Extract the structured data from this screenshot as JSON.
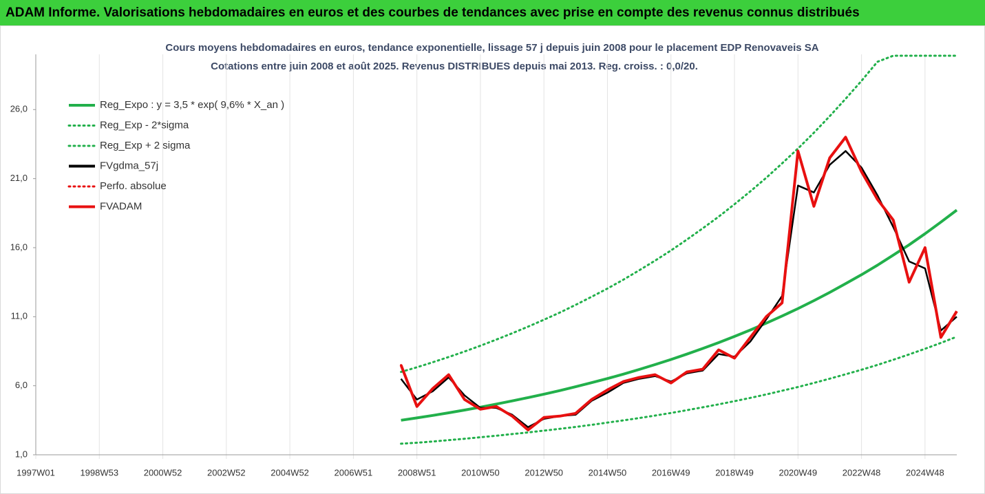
{
  "header": "ADAM Informe. Valorisations hebdomadaires en euros et des courbes de tendances avec prise en compte des revenus connus distribués",
  "chart_data": {
    "type": "line",
    "title": "Cours moyens hebdomadaires en euros, tendance exponentielle, lissage 57 j depuis juin 2008 pour le placement EDP Renovaveis SA",
    "subtitle": "Cotations entre juin 2008 et août 2025. Revenus DISTRIBUES depuis mai 2013. Reg. croiss. : 0,0/20.",
    "categories": [
      "1997W01",
      null,
      null,
      null,
      "1998W53",
      null,
      null,
      null,
      "2000W52",
      null,
      null,
      null,
      "2002W52",
      null,
      null,
      null,
      "2004W52",
      null,
      null,
      null,
      "2006W51",
      null,
      null,
      null,
      "2008W51",
      null,
      null,
      null,
      "2010W50",
      null,
      null,
      null,
      "2012W50",
      null,
      null,
      null,
      "2014W50",
      null,
      null,
      null,
      "2016W49",
      null,
      null,
      null,
      "2018W49",
      null,
      null,
      null,
      "2020W49",
      null,
      null,
      null,
      "2022W48",
      null,
      null,
      null,
      "2024W48",
      null,
      null
    ],
    "ylim": [
      1,
      30
    ],
    "yticks": [
      {
        "value": 1,
        "label": "1,0"
      },
      {
        "value": 6,
        "label": "6,0"
      },
      {
        "value": 11,
        "label": "11,0"
      },
      {
        "value": 16,
        "label": "16,0"
      },
      {
        "value": 21,
        "label": "21,0"
      },
      {
        "value": 26,
        "label": "26,0"
      }
    ],
    "grid": true,
    "legend": "top-left",
    "series": [
      {
        "name": "Reg_Expo : y = 3,5 * exp( 9,6% *  X_an )",
        "color": "#22b04b",
        "style": "solid",
        "values": [
          null,
          null,
          null,
          null,
          null,
          null,
          null,
          null,
          null,
          null,
          null,
          null,
          null,
          null,
          null,
          null,
          null,
          null,
          null,
          null,
          null,
          null,
          null,
          3.5,
          3.67,
          3.85,
          4.04,
          4.24,
          4.45,
          4.67,
          4.9,
          5.14,
          5.39,
          5.65,
          5.93,
          6.22,
          6.52,
          6.84,
          7.18,
          7.53,
          7.9,
          8.29,
          8.7,
          9.12,
          9.57,
          10.04,
          10.53,
          11.05,
          11.59,
          12.16,
          12.76,
          13.39,
          14.04,
          14.73,
          15.46,
          16.21,
          17.01,
          17.85,
          18.72
        ]
      },
      {
        "name": "Reg_Exp - 2*sigma",
        "color": "#22b04b",
        "style": "dotted",
        "values": [
          null,
          null,
          null,
          null,
          null,
          null,
          null,
          null,
          null,
          null,
          null,
          null,
          null,
          null,
          null,
          null,
          null,
          null,
          null,
          null,
          null,
          null,
          null,
          1.8,
          1.87,
          1.96,
          2.06,
          2.16,
          2.27,
          2.38,
          2.5,
          2.62,
          2.75,
          2.88,
          3.02,
          3.17,
          3.33,
          3.49,
          3.66,
          3.84,
          4.03,
          4.23,
          4.44,
          4.65,
          4.88,
          5.12,
          5.37,
          5.64,
          5.91,
          6.2,
          6.51,
          6.83,
          7.16,
          7.51,
          7.88,
          8.27,
          8.68,
          9.1,
          9.55
        ]
      },
      {
        "name": "Reg_Exp + 2 sigma",
        "color": "#22b04b",
        "style": "dotted",
        "values": [
          null,
          null,
          null,
          null,
          null,
          null,
          null,
          null,
          null,
          null,
          null,
          null,
          null,
          null,
          null,
          null,
          null,
          null,
          null,
          null,
          null,
          null,
          null,
          7.0,
          7.34,
          7.7,
          8.08,
          8.48,
          8.9,
          9.34,
          9.8,
          10.28,
          10.78,
          11.3,
          11.86,
          12.44,
          13.04,
          13.68,
          14.36,
          15.06,
          15.8,
          16.58,
          17.4,
          18.24,
          19.14,
          20.08,
          21.06,
          22.1,
          23.18,
          24.32,
          25.52,
          26.78,
          28.08,
          29.46,
          29.9,
          29.9,
          29.9,
          29.9,
          29.9
        ]
      },
      {
        "name": "FVgdma_57j",
        "color": "#000000",
        "style": "solid",
        "values": [
          null,
          null,
          null,
          null,
          null,
          null,
          null,
          null,
          null,
          null,
          null,
          null,
          null,
          null,
          null,
          null,
          null,
          null,
          null,
          null,
          null,
          null,
          null,
          6.5,
          5.0,
          5.6,
          6.6,
          5.3,
          4.4,
          4.4,
          3.9,
          3.0,
          3.6,
          3.8,
          3.9,
          4.9,
          5.5,
          6.2,
          6.5,
          6.7,
          6.3,
          6.9,
          7.1,
          8.3,
          8.1,
          9.2,
          10.8,
          12.5,
          20.5,
          20.0,
          22.0,
          23.0,
          21.8,
          19.8,
          17.5,
          15.0,
          14.5,
          10.0,
          11.0
        ]
      },
      {
        "name": "Perfo. absolue",
        "color": "#e81010",
        "style": "dotted",
        "values": [
          null,
          null,
          null,
          null,
          null,
          null,
          null,
          null,
          null,
          null,
          null,
          null,
          null,
          null,
          null,
          null,
          null,
          null,
          null,
          null,
          null,
          null,
          null,
          7.5,
          4.5,
          5.8,
          6.8,
          5.0,
          4.3,
          4.5,
          3.8,
          2.8,
          3.7,
          3.8,
          4.0,
          5.0,
          5.7,
          6.3,
          6.6,
          6.8,
          6.2,
          7.0,
          7.2,
          8.6,
          8.0,
          9.5,
          11.0,
          12.0,
          23.0,
          19.0,
          22.5,
          24.0,
          21.5,
          19.5,
          18.0,
          13.5,
          16.0,
          9.5,
          11.4
        ]
      },
      {
        "name": "FVADAM",
        "color": "#e81010",
        "style": "solid",
        "values": [
          null,
          null,
          null,
          null,
          null,
          null,
          null,
          null,
          null,
          null,
          null,
          null,
          null,
          null,
          null,
          null,
          null,
          null,
          null,
          null,
          null,
          null,
          null,
          7.5,
          4.5,
          5.8,
          6.8,
          5.0,
          4.3,
          4.5,
          3.8,
          2.8,
          3.7,
          3.8,
          4.0,
          5.0,
          5.7,
          6.3,
          6.6,
          6.8,
          6.2,
          7.0,
          7.2,
          8.6,
          8.0,
          9.5,
          11.0,
          12.0,
          23.0,
          19.0,
          22.5,
          24.0,
          21.5,
          19.5,
          18.0,
          13.5,
          16.0,
          9.5,
          11.4
        ]
      }
    ]
  }
}
